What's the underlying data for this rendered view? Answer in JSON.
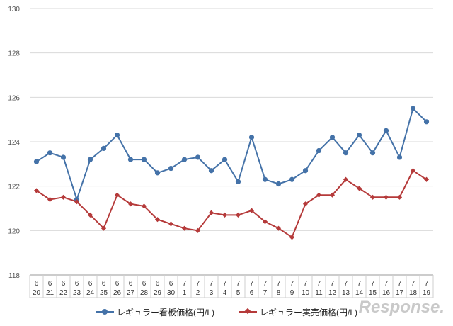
{
  "chart_data": {
    "type": "line",
    "title": "",
    "xlabel": "",
    "ylabel": "",
    "ylim": [
      118,
      130
    ],
    "yticks": [
      118,
      120,
      122,
      124,
      126,
      128,
      130
    ],
    "grid": "horizontal",
    "legend_position": "bottom",
    "categories": [
      {
        "month": "6",
        "day": "20"
      },
      {
        "month": "6",
        "day": "21"
      },
      {
        "month": "6",
        "day": "22"
      },
      {
        "month": "6",
        "day": "23"
      },
      {
        "month": "6",
        "day": "24"
      },
      {
        "month": "6",
        "day": "25"
      },
      {
        "month": "6",
        "day": "26"
      },
      {
        "month": "6",
        "day": "27"
      },
      {
        "month": "6",
        "day": "28"
      },
      {
        "month": "6",
        "day": "29"
      },
      {
        "month": "6",
        "day": "30"
      },
      {
        "month": "7",
        "day": "1"
      },
      {
        "month": "7",
        "day": "2"
      },
      {
        "month": "7",
        "day": "3"
      },
      {
        "month": "7",
        "day": "4"
      },
      {
        "month": "7",
        "day": "5"
      },
      {
        "month": "7",
        "day": "6"
      },
      {
        "month": "7",
        "day": "7"
      },
      {
        "month": "7",
        "day": "8"
      },
      {
        "month": "7",
        "day": "9"
      },
      {
        "month": "7",
        "day": "10"
      },
      {
        "month": "7",
        "day": "11"
      },
      {
        "month": "7",
        "day": "12"
      },
      {
        "month": "7",
        "day": "13"
      },
      {
        "month": "7",
        "day": "14"
      },
      {
        "month": "7",
        "day": "15"
      },
      {
        "month": "7",
        "day": "16"
      },
      {
        "month": "7",
        "day": "17"
      },
      {
        "month": "7",
        "day": "18"
      },
      {
        "month": "7",
        "day": "19"
      }
    ],
    "series": [
      {
        "name": "レギュラー看板価格(円/L)",
        "color": "#4472a8",
        "marker": "circle",
        "values": [
          123.1,
          123.5,
          123.3,
          121.4,
          123.2,
          123.7,
          124.3,
          123.2,
          123.2,
          122.6,
          122.8,
          123.2,
          123.3,
          122.7,
          123.2,
          122.2,
          124.2,
          122.3,
          122.1,
          122.3,
          122.7,
          123.6,
          124.2,
          123.5,
          124.3,
          123.5,
          124.5,
          123.3,
          125.5,
          124.9
        ]
      },
      {
        "name": "レギュラー実売価格(円/L)",
        "color": "#b53a3a",
        "marker": "diamond",
        "values": [
          121.8,
          121.4,
          121.5,
          121.3,
          120.7,
          120.1,
          121.6,
          121.2,
          121.1,
          120.5,
          120.3,
          120.1,
          120.0,
          120.8,
          120.7,
          120.7,
          120.9,
          120.4,
          120.1,
          119.7,
          121.2,
          121.6,
          121.6,
          122.3,
          121.9,
          121.5,
          121.5,
          121.5,
          122.7,
          122.3
        ]
      }
    ]
  },
  "watermark": "Response."
}
